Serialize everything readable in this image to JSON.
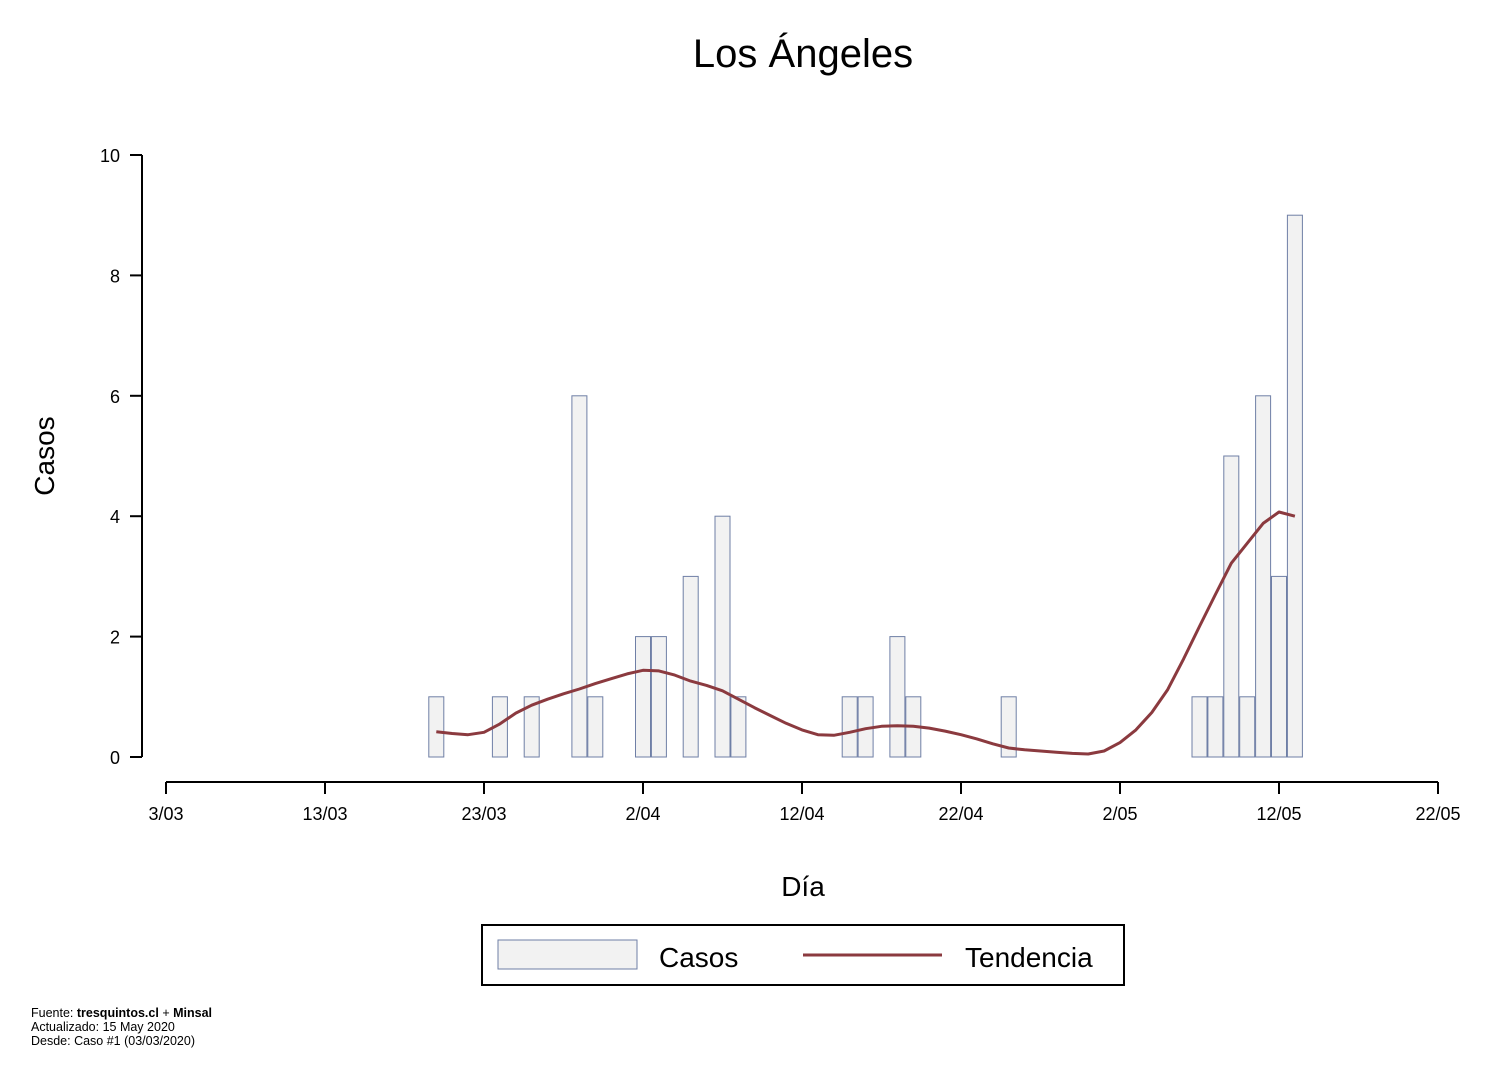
{
  "chart_data": {
    "type": "bar",
    "title": "Los Ángeles",
    "xlabel": "Día",
    "ylabel": "Casos",
    "ylim": [
      0,
      10
    ],
    "yticks": [
      0,
      2,
      4,
      6,
      8,
      10
    ],
    "x_tick_labels": [
      "3/03",
      "13/03",
      "23/03",
      "2/04",
      "12/04",
      "22/04",
      "2/05",
      "12/05",
      "22/05"
    ],
    "xlim_days": [
      0,
      80
    ],
    "start_date": "2020-03-03",
    "grid": false,
    "legend_position": "bottom",
    "series": [
      {
        "name": "Casos",
        "type": "bar",
        "color": "#f2f2f2",
        "border_color": "#6f7fa6",
        "points": [
          [
            "2020-03-20",
            1
          ],
          [
            "2020-03-24",
            1
          ],
          [
            "2020-03-26",
            1
          ],
          [
            "2020-03-29",
            6
          ],
          [
            "2020-03-30",
            1
          ],
          [
            "2020-04-02",
            2
          ],
          [
            "2020-04-03",
            2
          ],
          [
            "2020-04-05",
            3
          ],
          [
            "2020-04-07",
            4
          ],
          [
            "2020-04-08",
            1
          ],
          [
            "2020-04-15",
            1
          ],
          [
            "2020-04-16",
            1
          ],
          [
            "2020-04-18",
            2
          ],
          [
            "2020-04-19",
            1
          ],
          [
            "2020-04-25",
            1
          ],
          [
            "2020-05-07",
            1
          ],
          [
            "2020-05-08",
            1
          ],
          [
            "2020-05-09",
            5
          ],
          [
            "2020-05-10",
            1
          ],
          [
            "2020-05-11",
            6
          ],
          [
            "2020-05-12",
            3
          ],
          [
            "2020-05-13",
            9
          ]
        ]
      },
      {
        "name": "Tendencia",
        "type": "line",
        "color": "#8b3a3f",
        "points": [
          [
            "2020-03-20",
            0.42
          ],
          [
            "2020-03-21",
            0.39
          ],
          [
            "2020-03-22",
            0.37
          ],
          [
            "2020-03-23",
            0.41
          ],
          [
            "2020-03-24",
            0.55
          ],
          [
            "2020-03-25",
            0.73
          ],
          [
            "2020-03-26",
            0.86
          ],
          [
            "2020-03-27",
            0.96
          ],
          [
            "2020-03-28",
            1.05
          ],
          [
            "2020-03-29",
            1.13
          ],
          [
            "2020-03-30",
            1.22
          ],
          [
            "2020-03-31",
            1.3
          ],
          [
            "2020-04-01",
            1.38
          ],
          [
            "2020-04-02",
            1.44
          ],
          [
            "2020-04-03",
            1.43
          ],
          [
            "2020-04-04",
            1.36
          ],
          [
            "2020-04-05",
            1.26
          ],
          [
            "2020-04-06",
            1.19
          ],
          [
            "2020-04-07",
            1.1
          ],
          [
            "2020-04-08",
            0.96
          ],
          [
            "2020-04-09",
            0.82
          ],
          [
            "2020-04-10",
            0.69
          ],
          [
            "2020-04-11",
            0.56
          ],
          [
            "2020-04-12",
            0.45
          ],
          [
            "2020-04-13",
            0.37
          ],
          [
            "2020-04-14",
            0.36
          ],
          [
            "2020-04-15",
            0.41
          ],
          [
            "2020-04-16",
            0.47
          ],
          [
            "2020-04-17",
            0.51
          ],
          [
            "2020-04-18",
            0.52
          ],
          [
            "2020-04-19",
            0.51
          ],
          [
            "2020-04-20",
            0.48
          ],
          [
            "2020-04-21",
            0.43
          ],
          [
            "2020-04-22",
            0.37
          ],
          [
            "2020-04-23",
            0.3
          ],
          [
            "2020-04-24",
            0.22
          ],
          [
            "2020-04-25",
            0.15
          ],
          [
            "2020-04-26",
            0.12
          ],
          [
            "2020-04-27",
            0.1
          ],
          [
            "2020-04-28",
            0.08
          ],
          [
            "2020-04-29",
            0.06
          ],
          [
            "2020-04-30",
            0.05
          ],
          [
            "2020-05-01",
            0.1
          ],
          [
            "2020-05-02",
            0.24
          ],
          [
            "2020-05-03",
            0.45
          ],
          [
            "2020-05-04",
            0.74
          ],
          [
            "2020-05-05",
            1.12
          ],
          [
            "2020-05-06",
            1.63
          ],
          [
            "2020-05-07",
            2.17
          ],
          [
            "2020-05-08",
            2.7
          ],
          [
            "2020-05-09",
            3.22
          ],
          [
            "2020-05-10",
            3.55
          ],
          [
            "2020-05-11",
            3.88
          ],
          [
            "2020-05-12",
            4.07
          ],
          [
            "2020-05-13",
            4.0
          ]
        ]
      }
    ]
  },
  "legend": {
    "casos_label": "Casos",
    "tendencia_label": "Tendencia"
  },
  "footer": {
    "source_prefix": "Fuente: ",
    "source_site": "tresquintos.cl",
    "source_join": " + ",
    "source_org": "Minsal",
    "updated": "Actualizado: 15 May 2020",
    "since": "Desde: Caso #1  (03/03/2020)"
  }
}
